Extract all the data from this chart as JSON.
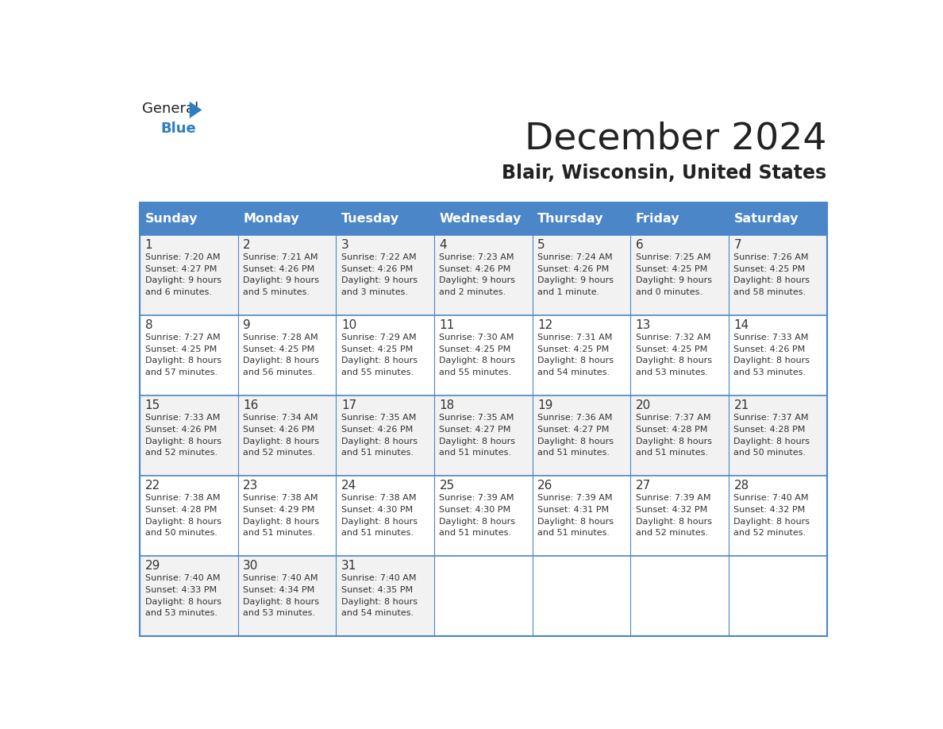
{
  "title": "December 2024",
  "subtitle": "Blair, Wisconsin, United States",
  "days_of_week": [
    "Sunday",
    "Monday",
    "Tuesday",
    "Wednesday",
    "Thursday",
    "Friday",
    "Saturday"
  ],
  "header_bg": "#4A86C8",
  "header_text": "#FFFFFF",
  "cell_bg_even": "#F2F2F2",
  "cell_bg_odd": "#FFFFFF",
  "border_color": "#4A86C8",
  "day_num_color": "#333333",
  "info_color": "#333333",
  "title_color": "#222222",
  "subtitle_color": "#222222",
  "logo_general_color": "#222222",
  "logo_blue_color": "#2E7EC2",
  "calendar_data": [
    [
      {
        "day": 1,
        "sunrise": "7:20 AM",
        "sunset": "4:27 PM",
        "daylight": "9 hours and 6 minutes."
      },
      {
        "day": 2,
        "sunrise": "7:21 AM",
        "sunset": "4:26 PM",
        "daylight": "9 hours and 5 minutes."
      },
      {
        "day": 3,
        "sunrise": "7:22 AM",
        "sunset": "4:26 PM",
        "daylight": "9 hours and 3 minutes."
      },
      {
        "day": 4,
        "sunrise": "7:23 AM",
        "sunset": "4:26 PM",
        "daylight": "9 hours and 2 minutes."
      },
      {
        "day": 5,
        "sunrise": "7:24 AM",
        "sunset": "4:26 PM",
        "daylight": "9 hours and 1 minute."
      },
      {
        "day": 6,
        "sunrise": "7:25 AM",
        "sunset": "4:25 PM",
        "daylight": "9 hours and 0 minutes."
      },
      {
        "day": 7,
        "sunrise": "7:26 AM",
        "sunset": "4:25 PM",
        "daylight": "8 hours and 58 minutes."
      }
    ],
    [
      {
        "day": 8,
        "sunrise": "7:27 AM",
        "sunset": "4:25 PM",
        "daylight": "8 hours and 57 minutes."
      },
      {
        "day": 9,
        "sunrise": "7:28 AM",
        "sunset": "4:25 PM",
        "daylight": "8 hours and 56 minutes."
      },
      {
        "day": 10,
        "sunrise": "7:29 AM",
        "sunset": "4:25 PM",
        "daylight": "8 hours and 55 minutes."
      },
      {
        "day": 11,
        "sunrise": "7:30 AM",
        "sunset": "4:25 PM",
        "daylight": "8 hours and 55 minutes."
      },
      {
        "day": 12,
        "sunrise": "7:31 AM",
        "sunset": "4:25 PM",
        "daylight": "8 hours and 54 minutes."
      },
      {
        "day": 13,
        "sunrise": "7:32 AM",
        "sunset": "4:25 PM",
        "daylight": "8 hours and 53 minutes."
      },
      {
        "day": 14,
        "sunrise": "7:33 AM",
        "sunset": "4:26 PM",
        "daylight": "8 hours and 53 minutes."
      }
    ],
    [
      {
        "day": 15,
        "sunrise": "7:33 AM",
        "sunset": "4:26 PM",
        "daylight": "8 hours and 52 minutes."
      },
      {
        "day": 16,
        "sunrise": "7:34 AM",
        "sunset": "4:26 PM",
        "daylight": "8 hours and 52 minutes."
      },
      {
        "day": 17,
        "sunrise": "7:35 AM",
        "sunset": "4:26 PM",
        "daylight": "8 hours and 51 minutes."
      },
      {
        "day": 18,
        "sunrise": "7:35 AM",
        "sunset": "4:27 PM",
        "daylight": "8 hours and 51 minutes."
      },
      {
        "day": 19,
        "sunrise": "7:36 AM",
        "sunset": "4:27 PM",
        "daylight": "8 hours and 51 minutes."
      },
      {
        "day": 20,
        "sunrise": "7:37 AM",
        "sunset": "4:28 PM",
        "daylight": "8 hours and 51 minutes."
      },
      {
        "day": 21,
        "sunrise": "7:37 AM",
        "sunset": "4:28 PM",
        "daylight": "8 hours and 50 minutes."
      }
    ],
    [
      {
        "day": 22,
        "sunrise": "7:38 AM",
        "sunset": "4:28 PM",
        "daylight": "8 hours and 50 minutes."
      },
      {
        "day": 23,
        "sunrise": "7:38 AM",
        "sunset": "4:29 PM",
        "daylight": "8 hours and 51 minutes."
      },
      {
        "day": 24,
        "sunrise": "7:38 AM",
        "sunset": "4:30 PM",
        "daylight": "8 hours and 51 minutes."
      },
      {
        "day": 25,
        "sunrise": "7:39 AM",
        "sunset": "4:30 PM",
        "daylight": "8 hours and 51 minutes."
      },
      {
        "day": 26,
        "sunrise": "7:39 AM",
        "sunset": "4:31 PM",
        "daylight": "8 hours and 51 minutes."
      },
      {
        "day": 27,
        "sunrise": "7:39 AM",
        "sunset": "4:32 PM",
        "daylight": "8 hours and 52 minutes."
      },
      {
        "day": 28,
        "sunrise": "7:40 AM",
        "sunset": "4:32 PM",
        "daylight": "8 hours and 52 minutes."
      }
    ],
    [
      {
        "day": 29,
        "sunrise": "7:40 AM",
        "sunset": "4:33 PM",
        "daylight": "8 hours and 53 minutes."
      },
      {
        "day": 30,
        "sunrise": "7:40 AM",
        "sunset": "4:34 PM",
        "daylight": "8 hours and 53 minutes."
      },
      {
        "day": 31,
        "sunrise": "7:40 AM",
        "sunset": "4:35 PM",
        "daylight": "8 hours and 54 minutes."
      },
      null,
      null,
      null,
      null
    ]
  ]
}
